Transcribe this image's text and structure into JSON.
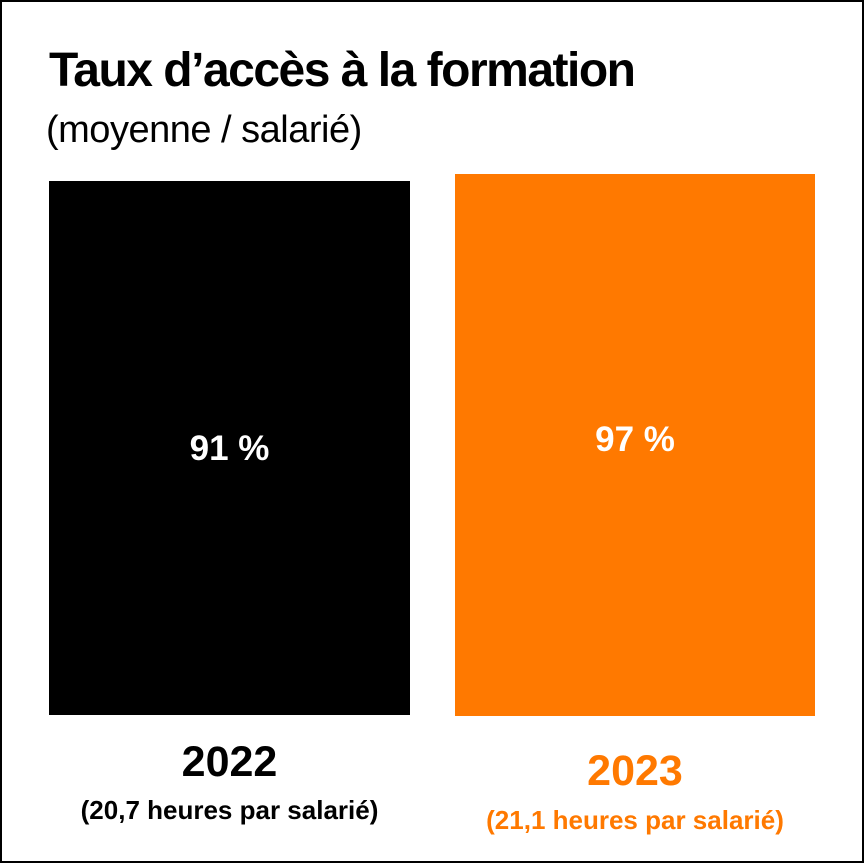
{
  "page": {
    "background": "#ffffff",
    "border_color": "#000000"
  },
  "chart_data": {
    "type": "bar",
    "title": "Taux d’accès à la formation",
    "subtitle": "(moyenne / salarié)",
    "categories": [
      "2022",
      "2023"
    ],
    "values": [
      91,
      97
    ],
    "unit": "%",
    "value_labels": [
      "91 %",
      "97 %"
    ],
    "annotations": [
      "(20,7 heures par salarié)",
      "(21,1 heures par salarié)"
    ],
    "bar_colors": [
      "#000000",
      "#FF7900"
    ],
    "category_label_colors": [
      "#000000",
      "#FF7900"
    ],
    "value_label_color": "#FFFFFF",
    "legend": "none",
    "grid": false,
    "xlabel": "",
    "ylabel": "",
    "ylim": [
      0,
      100
    ]
  }
}
